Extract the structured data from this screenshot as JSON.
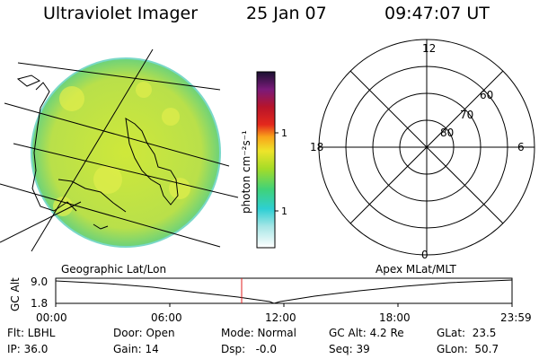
{
  "header": {
    "instrument": "Ultraviolet Imager",
    "date": "25 Jan 07",
    "time": "09:47:07 UT"
  },
  "colorbar": {
    "unit_label": "photon cm⁻²s⁻¹",
    "ticks": [
      "100",
      "10"
    ]
  },
  "polar": {
    "mlt_labels": {
      "top": "12",
      "left": "18",
      "right": "6",
      "bottom": "0"
    },
    "lat_labels": [
      "60",
      "70",
      "80"
    ]
  },
  "timeline": {
    "left_title": "Geographic Lat/Lon",
    "right_title": "Apex MLat/MLT",
    "ylabel": "GC Alt",
    "y_ticks": [
      "9.0",
      "1.8"
    ],
    "x_ticks": [
      "00:00",
      "06:00",
      "12:00",
      "18:00",
      "23:59"
    ],
    "marker_time": "09:47:07"
  },
  "status": {
    "flt": "Flt: LBHL",
    "ip": "IP: 36.0",
    "door": "Door: Open",
    "gain": "Gain: 14",
    "mode": "Mode: Normal",
    "dsp": "Dsp:   -0.0",
    "gcalt": "GC Alt: 4.2 Re",
    "seq": "Seq: 39",
    "glat": "GLat:  23.5",
    "glon": "GLon:  50.7"
  }
}
